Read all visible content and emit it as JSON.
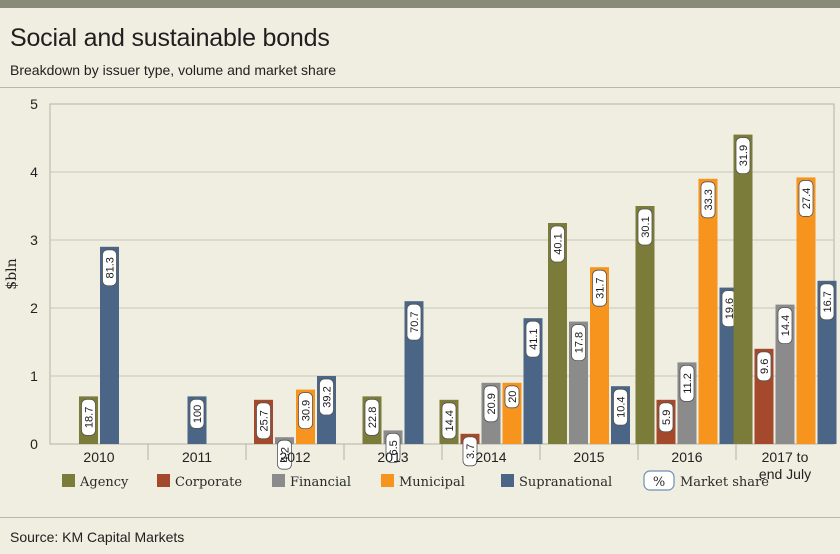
{
  "header": {
    "title": "Social and sustainable bonds",
    "subtitle": "Breakdown by issuer type, volume and market share"
  },
  "footer": {
    "source": "Source: KM Capital Markets"
  },
  "legend": {
    "market_share_symbol": "%",
    "market_share_label": "Market share"
  },
  "colors": {
    "Agency": "#7b7b3a",
    "Corporate": "#a4492b",
    "Financial": "#8b8b8b",
    "Municipal": "#f7941d",
    "Supranational": "#4a6585"
  },
  "chart_data": {
    "type": "bar",
    "title": "Social and sustainable bonds",
    "subtitle": "Breakdown by issuer type, volume and market share",
    "ylabel": "$bln",
    "ylim": [
      0,
      5
    ],
    "yticks": [
      0,
      1,
      2,
      3,
      4,
      5
    ],
    "grid": true,
    "legend_position": "bottom",
    "categories": [
      "2010",
      "2011",
      "2012",
      "2013",
      "2014",
      "2015",
      "2016",
      "2017 to end July"
    ],
    "series": [
      {
        "name": "Agency",
        "values": [
          0.7,
          null,
          null,
          0.7,
          0.65,
          3.25,
          3.5,
          4.55
        ],
        "labels": [
          "18.7",
          null,
          null,
          "22.8",
          "14.4",
          "40.1",
          "30.1",
          "31.9"
        ]
      },
      {
        "name": "Corporate",
        "values": [
          null,
          null,
          0.65,
          null,
          0.15,
          null,
          0.65,
          1.4
        ],
        "labels": [
          null,
          null,
          "25.7",
          null,
          "3.7",
          null,
          "5.9",
          "9.6"
        ]
      },
      {
        "name": "Financial",
        "values": [
          null,
          null,
          0.1,
          0.2,
          0.9,
          1.8,
          1.2,
          2.05
        ],
        "labels": [
          null,
          null,
          "4.2",
          "6.5",
          "20.9",
          "17.8",
          "11.2",
          "14.4"
        ]
      },
      {
        "name": "Municipal",
        "values": [
          null,
          null,
          0.8,
          null,
          0.9,
          2.6,
          3.9,
          3.92
        ],
        "labels": [
          null,
          null,
          "30.9",
          null,
          "20",
          "31.7",
          "33.3",
          "27.4"
        ]
      },
      {
        "name": "Supranational",
        "values": [
          2.9,
          0.7,
          1.0,
          2.1,
          1.85,
          0.85,
          2.3,
          2.4
        ],
        "labels": [
          "81.3",
          "100",
          "39.2",
          "70.7",
          "41.1",
          "10.4",
          "19.6",
          "16.7"
        ]
      }
    ]
  }
}
